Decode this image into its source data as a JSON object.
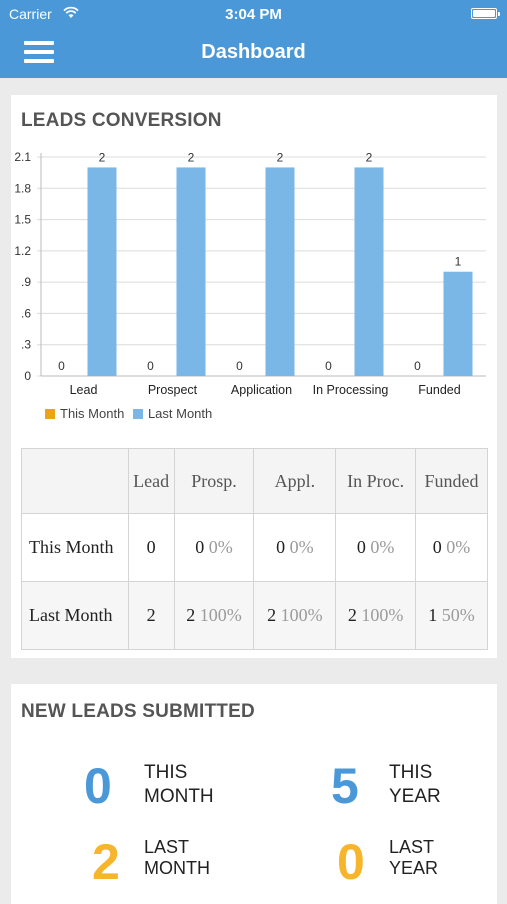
{
  "status_bar": {
    "carrier": "Carrier",
    "time": "3:04 PM"
  },
  "nav": {
    "title": "Dashboard"
  },
  "leads_conversion": {
    "title": "LEADS CONVERSION",
    "legend": [
      {
        "label": "This Month",
        "color": "#f0a11c"
      },
      {
        "label": "Last Month",
        "color": "#7ab6e6"
      }
    ],
    "table": {
      "headers": [
        "",
        "Lead",
        "Prosp.",
        "Appl.",
        "In Proc.",
        "Funded"
      ],
      "rows": [
        {
          "label": "This Month",
          "cells": [
            {
              "v": "0",
              "p": ""
            },
            {
              "v": "0",
              "p": "0%"
            },
            {
              "v": "0",
              "p": "0%"
            },
            {
              "v": "0",
              "p": "0%"
            },
            {
              "v": "0",
              "p": "0%"
            }
          ]
        },
        {
          "label": "Last Month",
          "cells": [
            {
              "v": "2",
              "p": ""
            },
            {
              "v": "2",
              "p": "100%"
            },
            {
              "v": "2",
              "p": "100%"
            },
            {
              "v": "2",
              "p": "100%"
            },
            {
              "v": "1",
              "p": "50%"
            }
          ]
        }
      ]
    }
  },
  "chart_data": {
    "type": "bar",
    "categories": [
      "Lead",
      "Prospect",
      "Application",
      "In Processing",
      "Funded"
    ],
    "series": [
      {
        "name": "This Month",
        "values": [
          0,
          0,
          0,
          0,
          0
        ],
        "color": "#f0a11c"
      },
      {
        "name": "Last Month",
        "values": [
          2,
          2,
          2,
          2,
          1
        ],
        "color": "#7ab6e6"
      }
    ],
    "yticks": [
      "0",
      ".3",
      ".6",
      ".9",
      "1.2",
      "1.5",
      "1.8",
      "2.1"
    ],
    "ylim": [
      0,
      2.1
    ],
    "grid": true,
    "legend": "bottom-left"
  },
  "new_leads": {
    "title": "NEW LEADS SUBMITTED",
    "stats": [
      {
        "value": "0",
        "line1": "THIS",
        "line2": "MONTH",
        "color": "#4a98d7"
      },
      {
        "value": "5",
        "line1": "THIS",
        "line2": "YEAR",
        "color": "#4a98d7"
      },
      {
        "value": "2",
        "line1": "LAST",
        "line2": "MONTH",
        "color": "#f7b52c"
      },
      {
        "value": "0",
        "line1": "LAST",
        "line2": "YEAR",
        "color": "#f7b52c"
      }
    ]
  }
}
